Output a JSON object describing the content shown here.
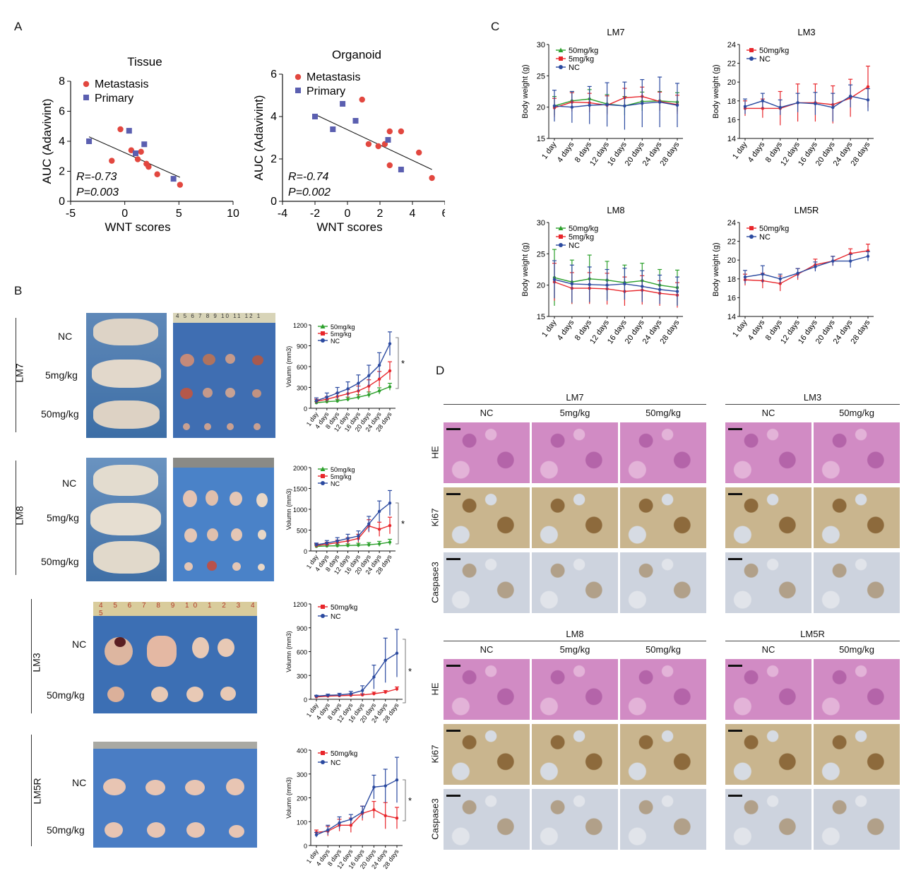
{
  "panels": {
    "A": "A",
    "B": "B",
    "C": "C",
    "D": "D"
  },
  "panelA": {
    "charts": [
      {
        "title": "Tissue",
        "xlabel": "WNT scores",
        "ylabel": "AUC (Adavivint)",
        "xlim": [
          -5,
          10
        ],
        "ylim": [
          0,
          8
        ],
        "xticks": [
          -5,
          0,
          5,
          10
        ],
        "yticks": [
          0,
          2,
          4,
          6,
          8
        ],
        "legend": [
          "Metastasis",
          "Primary"
        ],
        "stat_r": "R=-0.73",
        "stat_p": "P=0.003",
        "metastasis": [
          [
            -1.2,
            2.7
          ],
          [
            -0.4,
            4.8
          ],
          [
            0.6,
            3.4
          ],
          [
            1.2,
            2.8
          ],
          [
            1.5,
            3.3
          ],
          [
            2.0,
            2.5
          ],
          [
            2.2,
            2.3
          ],
          [
            3.0,
            1.8
          ],
          [
            5.1,
            1.1
          ]
        ],
        "primary": [
          [
            -3.3,
            4.0
          ],
          [
            0.4,
            4.7
          ],
          [
            1.0,
            3.2
          ],
          [
            1.8,
            3.8
          ],
          [
            4.5,
            1.5
          ]
        ],
        "fit": [
          [
            -3.3,
            4.3
          ],
          [
            5.1,
            1.6
          ]
        ]
      },
      {
        "title": "Organoid",
        "xlabel": "WNT scores",
        "ylabel": "AUC (Adavivint)",
        "xlim": [
          -4,
          6
        ],
        "ylim": [
          0,
          6
        ],
        "xticks": [
          -4,
          -2,
          0,
          2,
          4,
          6
        ],
        "yticks": [
          0,
          2,
          4,
          6
        ],
        "legend": [
          "Metastasis",
          "Primary"
        ],
        "stat_r": "R=-0.74",
        "stat_p": "P=0.002",
        "metastasis": [
          [
            0.9,
            4.8
          ],
          [
            1.3,
            2.7
          ],
          [
            1.9,
            2.6
          ],
          [
            2.3,
            2.7
          ],
          [
            2.6,
            3.3
          ],
          [
            2.6,
            1.7
          ],
          [
            3.3,
            3.3
          ],
          [
            4.4,
            2.3
          ],
          [
            5.2,
            1.1
          ]
        ],
        "primary": [
          [
            -2.0,
            4.0
          ],
          [
            -0.9,
            3.4
          ],
          [
            -0.3,
            4.6
          ],
          [
            0.5,
            3.8
          ],
          [
            2.5,
            2.9
          ],
          [
            3.3,
            1.5
          ]
        ],
        "fit": [
          [
            -2.0,
            4.1
          ],
          [
            5.2,
            1.5
          ]
        ]
      }
    ]
  },
  "panelB": {
    "groups": [
      {
        "name": "LM7",
        "rows": [
          "NC",
          "5mg/kg",
          "50mg/kg"
        ]
      },
      {
        "name": "LM8",
        "rows": [
          "NC",
          "5mg/kg",
          "50mg/kg"
        ]
      },
      {
        "name": "LM3",
        "rows": [
          "NC",
          "50mg/kg"
        ]
      },
      {
        "name": "LM5R",
        "rows": [
          "NC",
          "50mg/kg"
        ]
      }
    ],
    "ruler_lm7": "4 5 6 7 8 9 10 11 12 1",
    "ruler_lm3": "4 5 6 7 8 9 10 1 2 3 4 5",
    "star": "*"
  },
  "chart_data": [
    {
      "type": "line",
      "panel": "B-LM7",
      "ylabel": "Volumn (mm3)",
      "ylim": [
        0,
        1200
      ],
      "yticks": [
        0,
        300,
        600,
        900,
        1200
      ],
      "categories": [
        "1 day",
        "4 days",
        "8 days",
        "12 days",
        "16 days",
        "20 days",
        "24 days",
        "28 days"
      ],
      "series": [
        {
          "name": "50mg/kg",
          "color": "#2ca02c",
          "values": [
            80,
            95,
            105,
            130,
            160,
            195,
            250,
            310
          ],
          "err": [
            20,
            25,
            25,
            30,
            35,
            40,
            45,
            50
          ]
        },
        {
          "name": "5mg/kg",
          "color": "#e8262b",
          "values": [
            100,
            130,
            170,
            210,
            250,
            320,
            420,
            540
          ],
          "err": [
            30,
            40,
            50,
            60,
            70,
            90,
            110,
            130
          ]
        },
        {
          "name": "NC",
          "color": "#2b4aa0",
          "values": [
            110,
            160,
            220,
            280,
            360,
            470,
            620,
            930
          ],
          "err": [
            40,
            60,
            80,
            100,
            120,
            150,
            180,
            170
          ]
        }
      ]
    },
    {
      "type": "line",
      "panel": "B-LM8",
      "ylabel": "Volumn (mm3)",
      "ylim": [
        0,
        2000
      ],
      "yticks": [
        0,
        500,
        1000,
        1500,
        2000
      ],
      "categories": [
        "1 day",
        "4 days",
        "8 days",
        "12 days",
        "16 days",
        "20 days",
        "24 days",
        "28 days"
      ],
      "series": [
        {
          "name": "50mg/kg",
          "color": "#2ca02c",
          "values": [
            110,
            120,
            125,
            130,
            140,
            150,
            170,
            210
          ],
          "err": [
            30,
            30,
            35,
            40,
            45,
            50,
            60,
            70
          ]
        },
        {
          "name": "5mg/kg",
          "color": "#e8262b",
          "values": [
            130,
            160,
            200,
            240,
            300,
            600,
            520,
            610
          ],
          "err": [
            40,
            50,
            60,
            80,
            100,
            150,
            170,
            200
          ]
        },
        {
          "name": "NC",
          "color": "#2b4aa0",
          "values": [
            150,
            190,
            240,
            300,
            360,
            650,
            950,
            1150
          ],
          "err": [
            40,
            60,
            80,
            100,
            120,
            180,
            250,
            300
          ]
        }
      ]
    },
    {
      "type": "line",
      "panel": "B-LM3",
      "ylabel": "Volumn (mm3)",
      "ylim": [
        0,
        1200
      ],
      "yticks": [
        0,
        300,
        600,
        900,
        1200
      ],
      "categories": [
        "1 day",
        "4 days",
        "8 days",
        "12 days",
        "16 days",
        "20 days",
        "24 days",
        "28 days"
      ],
      "series": [
        {
          "name": "50mg/kg",
          "color": "#e8262b",
          "values": [
            30,
            40,
            45,
            50,
            55,
            70,
            90,
            130
          ],
          "err": [
            10,
            10,
            12,
            15,
            15,
            20,
            20,
            25
          ]
        },
        {
          "name": "NC",
          "color": "#2b4aa0",
          "values": [
            40,
            50,
            55,
            70,
            110,
            280,
            490,
            580
          ],
          "err": [
            10,
            15,
            20,
            30,
            60,
            150,
            280,
            300
          ]
        }
      ]
    },
    {
      "type": "line",
      "panel": "B-LM5R",
      "ylabel": "Volumn (mm3)",
      "ylim": [
        0,
        400
      ],
      "yticks": [
        0,
        100,
        200,
        300,
        400
      ],
      "categories": [
        "1 day",
        "4 days",
        "8 days",
        "12 days",
        "16 days",
        "20 days",
        "24 days",
        "28 days"
      ],
      "series": [
        {
          "name": "50mg/kg",
          "color": "#e8262b",
          "values": [
            55,
            60,
            85,
            85,
            135,
            150,
            125,
            115
          ],
          "err": [
            10,
            20,
            25,
            30,
            30,
            35,
            55,
            45
          ]
        },
        {
          "name": "NC",
          "color": "#2b4aa0",
          "values": [
            45,
            65,
            95,
            110,
            140,
            245,
            250,
            275
          ],
          "err": [
            10,
            20,
            25,
            20,
            25,
            50,
            70,
            95
          ]
        }
      ]
    },
    {
      "type": "line",
      "panel": "C-LM7",
      "title": "LM7",
      "ylabel": "Body weight (g)",
      "ylim": [
        15,
        30
      ],
      "yticks": [
        15,
        20,
        25,
        30
      ],
      "categories": [
        "1 day",
        "4 days",
        "8 days",
        "12 days",
        "16 days",
        "20 days",
        "24 days",
        "28 days"
      ],
      "series": [
        {
          "name": "50mg/kg",
          "color": "#2ca02c",
          "values": [
            20.2,
            21.0,
            21.3,
            20.5,
            20.2,
            20.9,
            21.0,
            20.8
          ],
          "err": [
            1.5,
            1.5,
            1.5,
            1.5,
            1.5,
            1.5,
            1.5,
            1.5
          ]
        },
        {
          "name": "5mg/kg",
          "color": "#e8262b",
          "values": [
            19.9,
            20.8,
            20.7,
            20.3,
            21.5,
            21.7,
            20.9,
            20.4
          ],
          "err": [
            1.5,
            1.5,
            1.5,
            1.5,
            1.5,
            1.5,
            1.5,
            1.5
          ]
        },
        {
          "name": "NC",
          "color": "#2b4aa0",
          "values": [
            20.2,
            20.0,
            20.3,
            20.4,
            20.2,
            20.6,
            20.8,
            20.3
          ],
          "err": [
            2.5,
            2.5,
            3.0,
            3.5,
            3.8,
            3.8,
            4.0,
            3.5
          ]
        }
      ]
    },
    {
      "type": "line",
      "panel": "C-LM3",
      "title": "LM3",
      "ylabel": "Body weight (g)",
      "ylim": [
        14,
        24
      ],
      "yticks": [
        14,
        16,
        18,
        20,
        22,
        24
      ],
      "categories": [
        "1 day",
        "4 days",
        "8 days",
        "12 days",
        "16 days",
        "20 days",
        "24 days",
        "28 days"
      ],
      "series": [
        {
          "name": "50mg/kg",
          "color": "#e8262b",
          "values": [
            17.2,
            17.2,
            17.2,
            17.8,
            17.8,
            17.6,
            18.3,
            19.5
          ],
          "err": [
            0.8,
            1.0,
            1.8,
            2.0,
            2.0,
            2.0,
            2.0,
            2.2
          ]
        },
        {
          "name": "NC",
          "color": "#2b4aa0",
          "values": [
            17.4,
            18.0,
            17.3,
            17.8,
            17.7,
            17.3,
            18.5,
            18.1
          ],
          "err": [
            0.8,
            0.8,
            0.8,
            1.0,
            1.2,
            1.5,
            1.2,
            1.2
          ]
        }
      ]
    },
    {
      "type": "line",
      "panel": "C-LM8",
      "title": "LM8",
      "ylabel": "Body weight (g)",
      "ylim": [
        15,
        30
      ],
      "yticks": [
        15,
        20,
        25,
        30
      ],
      "categories": [
        "1 day",
        "4 days",
        "8 days",
        "12 days",
        "16 days",
        "20 days",
        "24 days",
        "28 days"
      ],
      "series": [
        {
          "name": "50mg/kg",
          "color": "#2ca02c",
          "values": [
            21.2,
            20.5,
            21.0,
            20.8,
            20.4,
            20.7,
            20.0,
            19.6
          ],
          "err": [
            4.5,
            3.5,
            3.8,
            3.0,
            2.8,
            2.8,
            2.5,
            2.8
          ]
        },
        {
          "name": "5mg/kg",
          "color": "#e8262b",
          "values": [
            20.5,
            19.5,
            19.5,
            19.4,
            19.0,
            19.2,
            18.7,
            18.4
          ],
          "err": [
            3.0,
            2.5,
            2.5,
            2.5,
            2.3,
            2.3,
            2.0,
            2.0
          ]
        },
        {
          "name": "NC",
          "color": "#2b4aa0",
          "values": [
            20.9,
            20.2,
            20.1,
            20.0,
            20.2,
            19.8,
            19.3,
            19.0
          ],
          "err": [
            3.0,
            3.0,
            2.8,
            2.5,
            2.5,
            2.5,
            2.3,
            2.3
          ]
        }
      ]
    },
    {
      "type": "line",
      "panel": "C-LM5R",
      "title": "LM5R",
      "ylabel": "Body weight (g)",
      "ylim": [
        14,
        24
      ],
      "yticks": [
        14,
        16,
        18,
        20,
        22,
        24
      ],
      "categories": [
        "1 day",
        "4 days",
        "8 days",
        "12 days",
        "16 days",
        "20 days",
        "24 days",
        "28 days"
      ],
      "series": [
        {
          "name": "50mg/kg",
          "color": "#e8262b",
          "values": [
            17.9,
            17.8,
            17.5,
            18.5,
            19.5,
            19.9,
            20.7,
            21.0
          ],
          "err": [
            0.6,
            0.8,
            0.8,
            0.6,
            0.6,
            0.5,
            0.5,
            0.7
          ]
        },
        {
          "name": "NC",
          "color": "#2b4aa0",
          "values": [
            18.2,
            18.5,
            18.0,
            18.6,
            19.3,
            19.9,
            19.9,
            20.4
          ],
          "err": [
            0.7,
            0.9,
            0.5,
            0.5,
            0.5,
            0.5,
            0.7,
            0.5
          ]
        }
      ]
    }
  ],
  "panelD": {
    "groups": [
      {
        "title": "LM7",
        "cols": [
          "NC",
          "5mg/kg",
          "50mg/kg"
        ]
      },
      {
        "title": "LM3",
        "cols": [
          "NC",
          "50mg/kg"
        ]
      },
      {
        "title": "LM8",
        "cols": [
          "NC",
          "5mg/kg",
          "50mg/kg"
        ]
      },
      {
        "title": "LM5R",
        "cols": [
          "NC",
          "50mg/kg"
        ]
      }
    ],
    "stains": [
      "HE",
      "Ki67",
      "Caspase3"
    ]
  }
}
